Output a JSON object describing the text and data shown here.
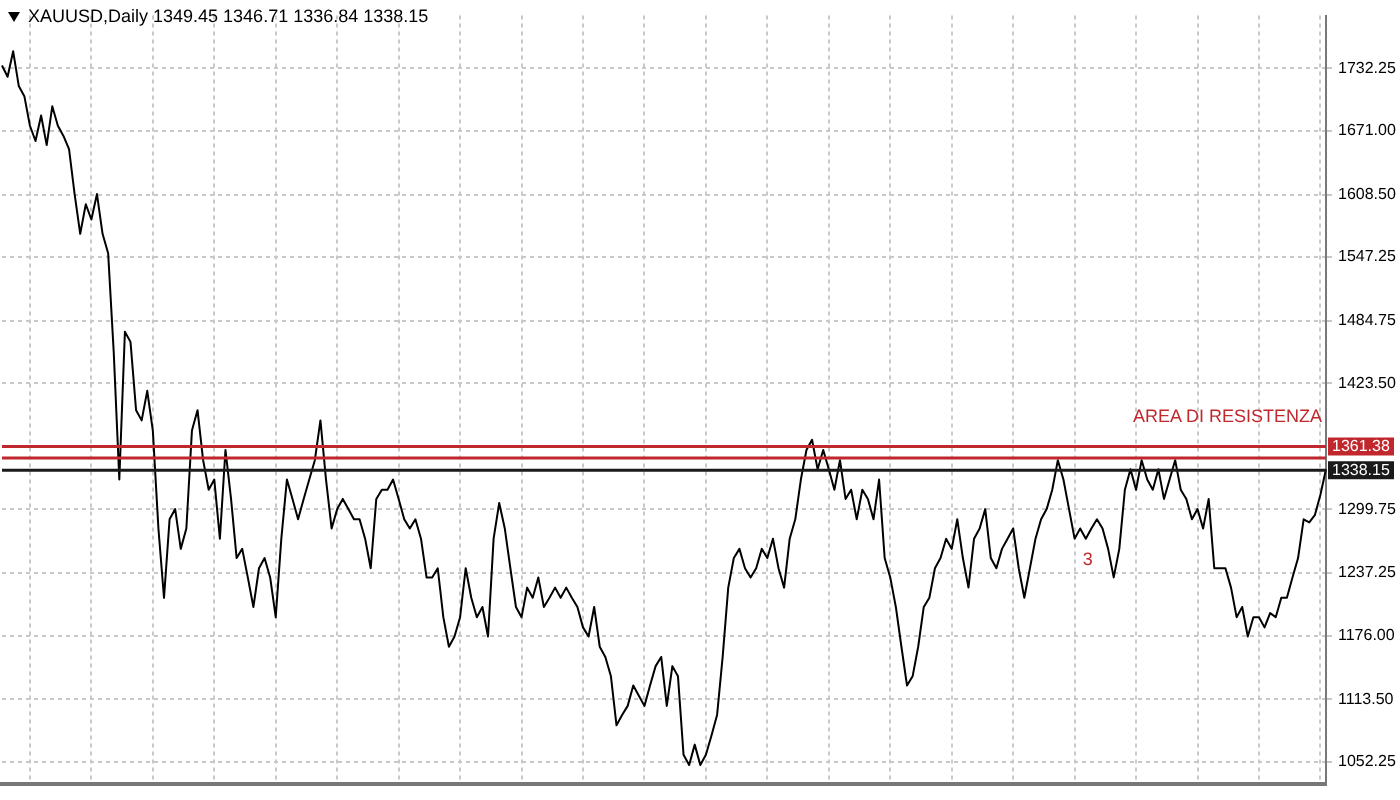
{
  "chart_data": {
    "type": "line",
    "title": "XAUUSD,Daily 1349.45 1346.71 1336.84 1338.15",
    "categories": [
      null,
      null,
      null,
      null,
      null,
      null,
      null,
      null,
      null,
      null,
      null,
      null,
      null,
      null,
      null,
      null,
      null,
      null,
      null,
      null,
      null,
      null,
      null,
      null,
      null,
      null,
      null,
      null,
      null,
      null,
      null,
      null,
      null,
      null,
      null,
      null,
      null,
      null,
      null,
      null,
      null,
      null,
      null,
      null,
      null,
      null,
      null,
      null,
      null,
      null,
      null,
      null,
      null,
      null,
      null,
      null,
      null,
      null,
      null,
      null,
      null,
      null,
      null,
      null,
      null,
      null,
      null,
      null,
      null,
      null,
      null,
      null,
      null,
      null,
      null,
      null,
      null,
      null,
      null,
      null,
      null,
      null,
      null,
      null,
      null,
      null,
      null,
      null,
      null,
      null,
      null,
      null,
      null,
      null,
      null,
      null,
      null,
      null,
      null,
      null,
      null,
      null,
      null,
      null,
      null,
      null,
      null,
      null,
      null,
      null,
      null,
      null,
      null,
      null,
      null,
      null,
      null,
      null,
      null,
      null,
      null,
      null,
      null,
      null,
      null,
      null,
      null,
      null,
      null,
      null,
      null,
      null,
      null,
      null,
      null,
      null,
      null,
      null,
      null,
      null,
      null,
      null,
      null,
      null,
      null,
      null,
      null,
      null,
      null,
      null,
      null,
      null,
      null,
      null,
      null,
      null,
      null,
      null,
      null,
      null,
      null,
      null,
      null,
      null,
      null,
      null,
      null,
      null,
      null,
      null,
      null,
      null,
      null,
      null,
      null,
      null,
      null,
      null,
      null,
      null,
      null,
      null,
      null,
      null,
      null,
      null,
      null,
      null,
      null,
      null,
      null,
      null,
      null,
      null,
      null,
      null,
      null,
      null,
      null,
      null,
      null,
      null,
      null,
      null,
      null,
      null,
      null,
      null,
      null,
      null,
      null,
      null,
      null,
      null,
      null,
      null,
      null,
      null,
      null,
      null,
      null,
      null,
      null,
      null,
      null,
      null,
      null,
      null,
      null,
      null,
      null,
      null,
      null,
      null,
      null,
      null,
      null,
      null
    ],
    "series": [
      {
        "color": "#000000",
        "values": [
          1735,
          1724,
          1749,
          1715,
          1705,
          1676,
          1661,
          1686,
          1657,
          1695,
          1676,
          1666,
          1653,
          1609,
          1570,
          1599,
          1584,
          1609,
          1570,
          1551,
          1454,
          1329,
          1474,
          1464,
          1397,
          1387,
          1416,
          1377,
          1281,
          1213,
          1290,
          1300,
          1261,
          1281,
          1377,
          1397,
          1348,
          1319,
          1329,
          1271,
          1358,
          1310,
          1252,
          1261,
          1233,
          1204,
          1242,
          1252,
          1233,
          1194,
          1271,
          1329,
          1310,
          1290,
          1310,
          1329,
          1348,
          1387,
          1329,
          1281,
          1300,
          1310,
          1300,
          1290,
          1290,
          1271,
          1242,
          1310,
          1319,
          1319,
          1329,
          1310,
          1290,
          1281,
          1290,
          1271,
          1233,
          1233,
          1242,
          1194,
          1165,
          1175,
          1194,
          1242,
          1213,
          1194,
          1204,
          1175,
          1271,
          1306,
          1281,
          1242,
          1204,
          1194,
          1223,
          1213,
          1233,
          1204,
          1213,
          1223,
          1213,
          1223,
          1213,
          1204,
          1184,
          1175,
          1204,
          1165,
          1155,
          1136,
          1088,
          1098,
          1107,
          1127,
          1117,
          1107,
          1127,
          1146,
          1155,
          1107,
          1146,
          1136,
          1059,
          1049,
          1069,
          1049,
          1059,
          1078,
          1098,
          1155,
          1223,
          1252,
          1261,
          1242,
          1233,
          1242,
          1261,
          1252,
          1271,
          1242,
          1223,
          1271,
          1290,
          1329,
          1358,
          1368,
          1339,
          1358,
          1339,
          1319,
          1348,
          1310,
          1319,
          1290,
          1319,
          1310,
          1290,
          1329,
          1252,
          1233,
          1204,
          1165,
          1127,
          1136,
          1165,
          1204,
          1213,
          1242,
          1252,
          1271,
          1261,
          1290,
          1252,
          1223,
          1271,
          1281,
          1300,
          1252,
          1242,
          1261,
          1271,
          1281,
          1242,
          1213,
          1242,
          1271,
          1290,
          1300,
          1319,
          1348,
          1329,
          1300,
          1271,
          1281,
          1271,
          1281,
          1290,
          1281,
          1261,
          1233,
          1261,
          1319,
          1339,
          1319,
          1348,
          1329,
          1319,
          1339,
          1310,
          1329,
          1348,
          1319,
          1310,
          1290,
          1300,
          1281,
          1310,
          1242,
          1242,
          1242,
          1223,
          1194,
          1204,
          1175,
          1194,
          1194,
          1184,
          1198,
          1194,
          1213,
          1213,
          1233,
          1252,
          1290,
          1287,
          1294,
          1314,
          1339
        ]
      }
    ],
    "ylim": [
      1030,
      1784
    ],
    "yticks": [
      1052.25,
      {
        "value": 1113.5,
        "label": "1113.50"
      },
      {
        "value": 1176,
        "label": "1176.00"
      },
      1237.25,
      1299.75,
      {
        "value": 1423.5,
        "label": "1423.50"
      },
      1484.75,
      1547.25,
      {
        "value": 1608.5,
        "label": "1608.50"
      },
      {
        "value": 1671,
        "label": "1671.00"
      },
      1732.25
    ],
    "grid": true,
    "marker": "none",
    "line_style": "solid",
    "ref_lines": [
      {
        "axis": "y",
        "value": 1361.38,
        "label": "1361.38",
        "color": "#c0282d"
      },
      {
        "axis": "y",
        "value": 1350,
        "color": "#c0282d"
      },
      {
        "axis": "y",
        "value": 1338.15,
        "label": "1338.15",
        "color": "#1a1a1a"
      }
    ],
    "annotations": [
      "AREA DI RESISTENZA",
      "3"
    ]
  }
}
